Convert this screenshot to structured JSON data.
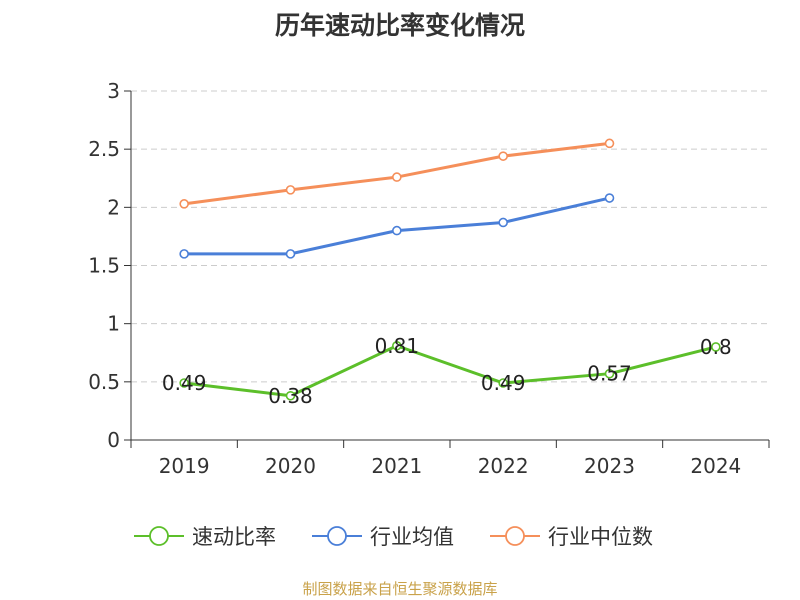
{
  "title": "历年速动比率变化情况",
  "source": "制图数据来自恒生聚源数据库",
  "chart_data": {
    "type": "line",
    "title": "历年速动比率变化情况",
    "categories": [
      "2019",
      "2020",
      "2021",
      "2022",
      "2023",
      "2024"
    ],
    "ylim": [
      0,
      3
    ],
    "yticks": [
      0,
      0.5,
      1,
      1.5,
      2,
      2.5,
      3
    ],
    "ytick_labels": [
      "0",
      "0.5",
      "1",
      "1.5",
      "2",
      "2.5",
      "3"
    ],
    "grid": true,
    "legend_position": "bottom",
    "series": [
      {
        "name": "速动比率",
        "color": "#5cbf2a",
        "values": [
          0.49,
          0.38,
          0.81,
          0.49,
          0.57,
          0.8
        ],
        "labels": [
          "0.49",
          "0.38",
          "0.81",
          "0.49",
          "0.57",
          "0.8"
        ],
        "show_labels": true
      },
      {
        "name": "行业均值",
        "color": "#4a7fd8",
        "values": [
          1.6,
          1.6,
          1.8,
          1.87,
          2.08,
          null
        ],
        "show_labels": false
      },
      {
        "name": "行业中位数",
        "color": "#f58f5a",
        "values": [
          2.03,
          2.15,
          2.26,
          2.44,
          2.55,
          null
        ],
        "show_labels": false
      }
    ]
  }
}
